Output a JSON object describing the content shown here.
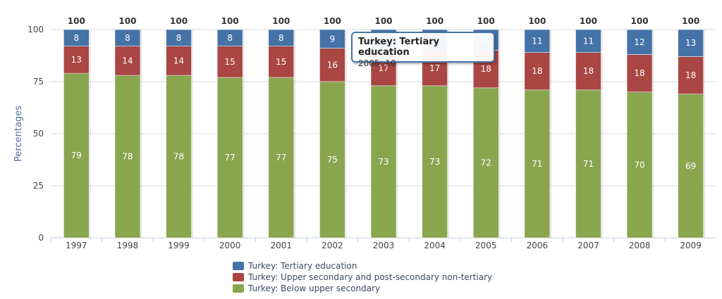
{
  "chart_data": {
    "type": "bar",
    "stacked": true,
    "categories": [
      "1997",
      "1998",
      "1999",
      "2000",
      "2001",
      "2002",
      "2003",
      "2004",
      "2005",
      "2006",
      "2007",
      "2008",
      "2009"
    ],
    "series": [
      {
        "name": "Turkey: Below upper secondary",
        "color": "#89a54e",
        "values": [
          79,
          78,
          78,
          77,
          77,
          75,
          73,
          73,
          72,
          71,
          71,
          70,
          69
        ]
      },
      {
        "name": "Turkey: Upper secondary and post-secondary non-tertiary",
        "color": "#aa4643",
        "values": [
          13,
          14,
          14,
          15,
          15,
          16,
          17,
          17,
          18,
          18,
          18,
          18,
          18
        ]
      },
      {
        "name": "Turkey: Tertiary education",
        "color": "#4572a7",
        "values": [
          8,
          8,
          8,
          8,
          8,
          9,
          10,
          10,
          10,
          11,
          11,
          12,
          13
        ]
      }
    ],
    "totals": [
      100,
      100,
      100,
      100,
      100,
      100,
      100,
      100,
      100,
      100,
      100,
      100,
      100
    ],
    "ylabel": "Percentages",
    "ylim": [
      0,
      100
    ],
    "yticks": [
      0,
      25,
      50,
      75,
      100
    ],
    "grid": true,
    "legend_position": "bottom"
  },
  "legend": {
    "items": [
      {
        "label": "Turkey: Tertiary education",
        "color": "#4572a7"
      },
      {
        "label": "Turkey: Upper secondary and post-secondary non-tertiary",
        "color": "#aa4643"
      },
      {
        "label": "Turkey: Below upper secondary",
        "color": "#89a54e"
      }
    ]
  },
  "tooltip": {
    "title": "Turkey: Tertiary education",
    "value": "2005: 10"
  }
}
